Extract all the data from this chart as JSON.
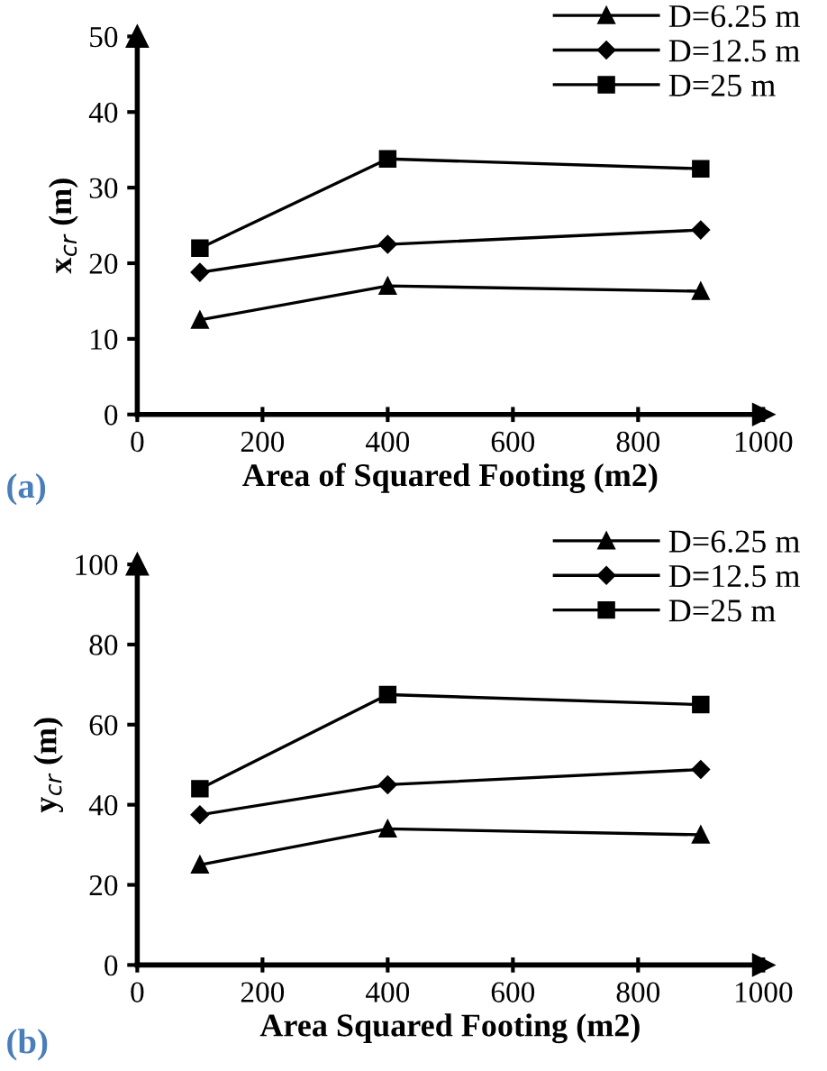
{
  "chart_data": [
    {
      "type": "line",
      "xlabel": "Area of Squared Footing (m2)",
      "ylabel": "x$_{cr}$ (m)",
      "annotations": [
        "(a)"
      ],
      "x": [
        100,
        400,
        900
      ],
      "xlim": [
        0,
        1000
      ],
      "xticks": [
        0,
        200,
        400,
        600,
        800,
        1000
      ],
      "ylim": [
        0,
        50
      ],
      "yticks": [
        0,
        10,
        20,
        30,
        40,
        50
      ],
      "legend": "top right",
      "grid": false,
      "series": [
        {
          "name": "D=6.25 m",
          "color": "#000000",
          "marker": "triangle",
          "values": [
            12.5,
            17,
            16.3
          ]
        },
        {
          "name": "D=12.5 m",
          "color": "#000000",
          "marker": "diamond",
          "values": [
            18.8,
            22.5,
            24.4
          ]
        },
        {
          "name": "D=25 m",
          "color": "#000000",
          "marker": "square",
          "values": [
            22,
            33.8,
            32.5
          ]
        }
      ]
    },
    {
      "type": "line",
      "xlabel": "Area Squared Footing (m2)",
      "ylabel": "y$_{cr}$ (m)",
      "annotations": [
        "(b)"
      ],
      "x": [
        100,
        400,
        900
      ],
      "xlim": [
        0,
        1000
      ],
      "xticks": [
        0,
        200,
        400,
        600,
        800,
        1000
      ],
      "ylim": [
        0,
        100
      ],
      "yticks": [
        0,
        20,
        40,
        60,
        80,
        100
      ],
      "legend": "top right",
      "grid": false,
      "series": [
        {
          "name": "D=6.25 m",
          "color": "#000000",
          "marker": "triangle",
          "values": [
            25,
            34,
            32.5
          ]
        },
        {
          "name": "D=12.5 m",
          "color": "#000000",
          "marker": "diamond",
          "values": [
            37.5,
            45,
            48.8
          ]
        },
        {
          "name": "D=25 m",
          "color": "#000000",
          "marker": "square",
          "values": [
            44,
            67.5,
            65
          ]
        }
      ]
    }
  ]
}
